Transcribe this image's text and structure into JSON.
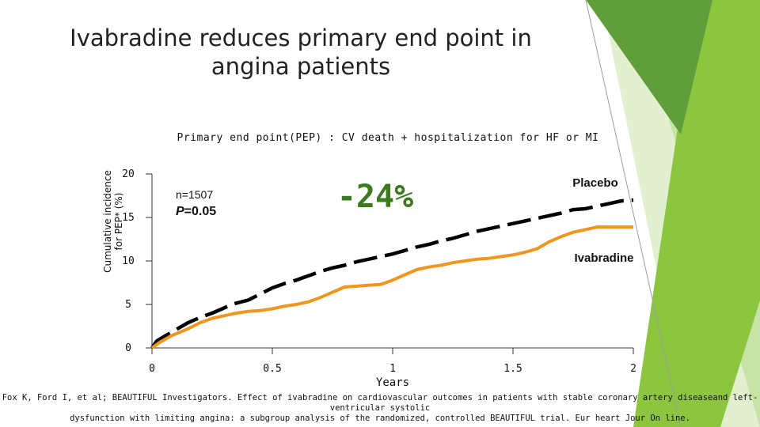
{
  "slide": {
    "title_line1": "Ivabradine reduces primary end point  in",
    "title_line2": "angina patients",
    "citation_line1": "Fox K, Ford I, et al; BEAUTIFUL Investigators. Effect of ivabradine on cardiovascular outcomes in patients with stable coronary artery diseaseand left-ventricular systolic",
    "citation_line2": "dysfunction with limiting angina: a subgroup analysis of the randomized, controlled BEAUTIFUL trial. Eur heart Jour On line.",
    "colors": {
      "deco_green_dark": "#5f9e3a",
      "deco_green": "#8cc63f",
      "deco_green_light": "#c8e3a6",
      "deco_green_pale": "#e2f0d0"
    }
  },
  "chart_data": {
    "type": "line",
    "title": "Primary end point(PEP) : CV death + hospitalization for HF or MI",
    "xlabel": "Years",
    "ylabel_line1": "Cumulative incidence",
    "ylabel_line2": "for PEP* (%)",
    "xlim": [
      0,
      2
    ],
    "ylim": [
      0,
      20
    ],
    "xticks": [
      "0",
      "0.5",
      "1",
      "1.5",
      "2"
    ],
    "yticks": [
      "0",
      "5",
      "10",
      "15",
      "20"
    ],
    "xtick_values": [
      0,
      0.5,
      1,
      1.5,
      2
    ],
    "ytick_values": [
      0,
      5,
      10,
      15,
      20
    ],
    "annotations": {
      "n": "n=1507",
      "p_label": "P",
      "p_value": "=0.05",
      "reduction": "-24%"
    },
    "series": [
      {
        "name": "Placebo",
        "color": "#000000",
        "style": "dashed",
        "x": [
          0.0,
          0.02,
          0.05,
          0.1,
          0.15,
          0.2,
          0.25,
          0.3,
          0.33,
          0.4,
          0.45,
          0.5,
          0.55,
          0.6,
          0.65,
          0.7,
          0.75,
          0.8,
          0.85,
          0.9,
          0.95,
          1.0,
          1.05,
          1.1,
          1.15,
          1.2,
          1.25,
          1.3,
          1.35,
          1.4,
          1.45,
          1.5,
          1.55,
          1.6,
          1.65,
          1.7,
          1.75,
          1.8,
          1.85,
          1.9,
          1.95,
          2.0
        ],
        "values": [
          0.0,
          0.8,
          1.3,
          2.1,
          2.9,
          3.5,
          4.0,
          4.6,
          5.0,
          5.5,
          6.2,
          6.9,
          7.4,
          7.8,
          8.3,
          8.8,
          9.2,
          9.5,
          9.9,
          10.2,
          10.5,
          10.8,
          11.2,
          11.6,
          11.9,
          12.3,
          12.6,
          13.0,
          13.4,
          13.7,
          14.0,
          14.3,
          14.6,
          14.9,
          15.2,
          15.5,
          15.9,
          16.0,
          16.3,
          16.6,
          16.9,
          17.0
        ]
      },
      {
        "name": "Ivabradine",
        "color": "#f0961e",
        "style": "solid",
        "x": [
          0.0,
          0.03,
          0.08,
          0.15,
          0.2,
          0.25,
          0.3,
          0.35,
          0.4,
          0.45,
          0.5,
          0.55,
          0.6,
          0.65,
          0.7,
          0.75,
          0.8,
          0.85,
          0.9,
          0.95,
          1.0,
          1.05,
          1.1,
          1.15,
          1.2,
          1.25,
          1.3,
          1.35,
          1.4,
          1.45,
          1.5,
          1.55,
          1.6,
          1.65,
          1.7,
          1.75,
          1.8,
          1.85,
          2.0
        ],
        "values": [
          0.0,
          0.6,
          1.4,
          2.2,
          2.9,
          3.4,
          3.7,
          4.0,
          4.2,
          4.3,
          4.5,
          4.8,
          5.0,
          5.3,
          5.8,
          6.4,
          7.0,
          7.1,
          7.2,
          7.3,
          7.8,
          8.4,
          9.0,
          9.3,
          9.5,
          9.8,
          10.0,
          10.2,
          10.3,
          10.5,
          10.7,
          11.0,
          11.4,
          12.2,
          12.8,
          13.3,
          13.6,
          13.9,
          13.9
        ]
      }
    ]
  }
}
